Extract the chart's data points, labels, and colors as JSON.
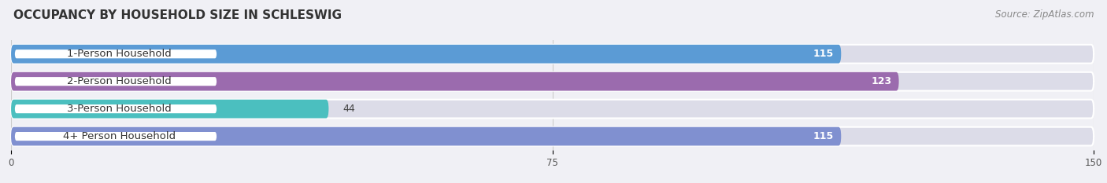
{
  "title": "OCCUPANCY BY HOUSEHOLD SIZE IN SCHLESWIG",
  "source": "Source: ZipAtlas.com",
  "categories": [
    "1-Person Household",
    "2-Person Household",
    "3-Person Household",
    "4+ Person Household"
  ],
  "values": [
    115,
    123,
    44,
    115
  ],
  "bar_colors": [
    "#5b9bd5",
    "#9b6bae",
    "#4bbfbf",
    "#8090d0"
  ],
  "label_bg_colors": [
    "#5b9bd5",
    "#9b6bae",
    "#4bbfbf",
    "#8090d0"
  ],
  "background_color": "#f0f0f5",
  "bar_bg_color": "#dcdce8",
  "xlim": [
    0,
    150
  ],
  "xticks": [
    0,
    75,
    150
  ],
  "bar_height": 0.68,
  "label_fontsize": 9.5,
  "value_fontsize": 9,
  "title_fontsize": 11,
  "source_fontsize": 8.5
}
